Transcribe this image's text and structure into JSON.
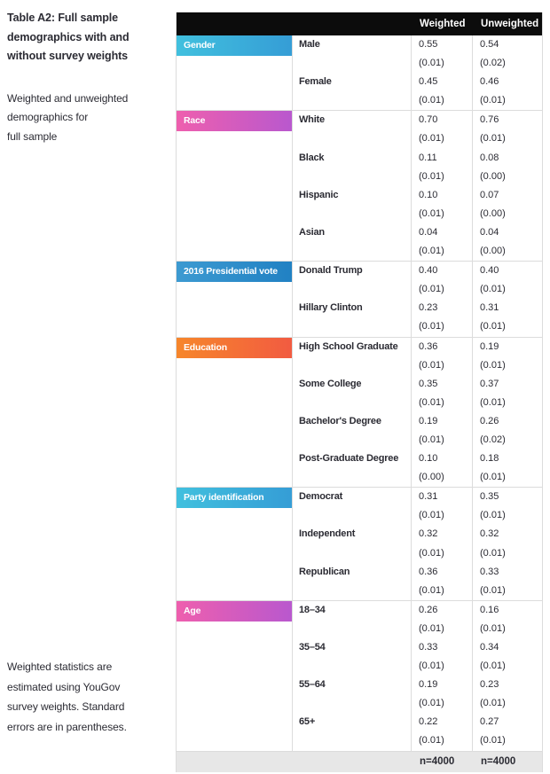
{
  "sidebar": {
    "title": "Table A2: Full sample\ndemographics with and\nwithout survey weights",
    "subtitle": "Weighted and unweighted\ndemographics for\nfull sample",
    "note": "Weighted statistics are\nestimated using YouGov\nsurvey weights. Standard\nerrors are in parentheses."
  },
  "theme": {
    "header_bg": "#0c0c0c",
    "footer_bg": "#e7e7e7",
    "border_color": "#dcdcdc",
    "text_color": "#2b2b33",
    "gradients": {
      "cyan": "linear-gradient(90deg, #41c0de, #359dd6)",
      "magenta": "linear-gradient(90deg, #ee5fae, #b958ce)",
      "blue": "linear-gradient(90deg, #3d9ad1, #2181c3)",
      "orange": "linear-gradient(90deg, #f6862b, #f25b41)"
    }
  },
  "table": {
    "column_headers": [
      "Weighted",
      "Unweighted"
    ],
    "sections": [
      {
        "label": "Gender",
        "color": "cyan",
        "rows": [
          {
            "label": "Male",
            "weighted": "0.55",
            "weighted_se": "(0.01)",
            "unweighted": "0.54",
            "unweighted_se": "(0.02)"
          },
          {
            "label": "Female",
            "weighted": "0.45",
            "weighted_se": "(0.01)",
            "unweighted": "0.46",
            "unweighted_se": "(0.01)"
          }
        ]
      },
      {
        "label": "Race",
        "color": "magenta",
        "rows": [
          {
            "label": "White",
            "weighted": "0.70",
            "weighted_se": "(0.01)",
            "unweighted": "0.76",
            "unweighted_se": "(0.01)"
          },
          {
            "label": "Black",
            "weighted": "0.11",
            "weighted_se": "(0.01)",
            "unweighted": "0.08",
            "unweighted_se": "(0.00)"
          },
          {
            "label": "Hispanic",
            "weighted": "0.10",
            "weighted_se": "(0.01)",
            "unweighted": "0.07",
            "unweighted_se": "(0.00)"
          },
          {
            "label": "Asian",
            "weighted": "0.04",
            "weighted_se": "(0.01)",
            "unweighted": "0.04",
            "unweighted_se": "(0.00)"
          }
        ]
      },
      {
        "label": "2016 Presidential vote",
        "color": "blue",
        "rows": [
          {
            "label": "Donald Trump",
            "weighted": "0.40",
            "weighted_se": "(0.01)",
            "unweighted": "0.40",
            "unweighted_se": "(0.01)"
          },
          {
            "label": "Hillary Clinton",
            "weighted": "0.23",
            "weighted_se": "(0.01)",
            "unweighted": "0.31",
            "unweighted_se": "(0.01)"
          }
        ]
      },
      {
        "label": "Education",
        "color": "orange",
        "rows": [
          {
            "label": "High School Graduate",
            "weighted": "0.36",
            "weighted_se": "(0.01)",
            "unweighted": "0.19",
            "unweighted_se": "(0.01)"
          },
          {
            "label": "Some College",
            "weighted": "0.35",
            "weighted_se": "(0.01)",
            "unweighted": "0.37",
            "unweighted_se": "(0.01)"
          },
          {
            "label": "Bachelor's Degree",
            "weighted": "0.19",
            "weighted_se": "(0.01)",
            "unweighted": "0.26",
            "unweighted_se": "(0.02)"
          },
          {
            "label": "Post-Graduate Degree",
            "weighted": "0.10",
            "weighted_se": "(0.00)",
            "unweighted": "0.18",
            "unweighted_se": "(0.01)"
          }
        ]
      },
      {
        "label": "Party identification",
        "color": "cyan",
        "rows": [
          {
            "label": "Democrat",
            "weighted": "0.31",
            "weighted_se": "(0.01)",
            "unweighted": "0.35",
            "unweighted_se": "(0.01)"
          },
          {
            "label": "Independent",
            "weighted": "0.32",
            "weighted_se": "(0.01)",
            "unweighted": "0.32",
            "unweighted_se": "(0.01)"
          },
          {
            "label": "Republican",
            "weighted": "0.36",
            "weighted_se": "(0.01)",
            "unweighted": "0.33",
            "unweighted_se": "(0.01)"
          }
        ]
      },
      {
        "label": "Age",
        "color": "magenta",
        "rows": [
          {
            "label": "18–34",
            "weighted": "0.26",
            "weighted_se": "(0.01)",
            "unweighted": "0.16",
            "unweighted_se": "(0.01)"
          },
          {
            "label": "35–54",
            "weighted": "0.33",
            "weighted_se": "(0.01)",
            "unweighted": "0.34",
            "unweighted_se": "(0.01)"
          },
          {
            "label": "55–64",
            "weighted": "0.19",
            "weighted_se": "(0.01)",
            "unweighted": "0.23",
            "unweighted_se": "(0.01)"
          },
          {
            "label": "65+",
            "weighted": "0.22",
            "weighted_se": "(0.01)",
            "unweighted": "0.27",
            "unweighted_se": "(0.01)"
          }
        ]
      }
    ],
    "footer": {
      "weighted": "n=4000",
      "unweighted": "n=4000"
    }
  }
}
